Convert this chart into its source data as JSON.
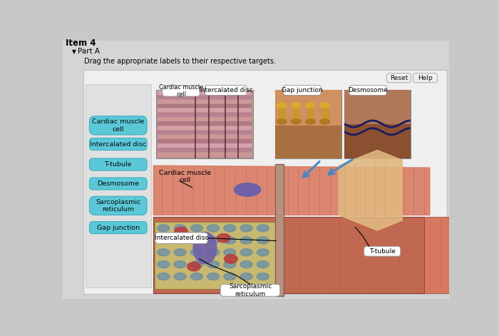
{
  "title": "Item 4",
  "part_label": "Part A",
  "instruction": "Drag the appropriate labels to their respective targets.",
  "bg_outer": "#c8c8c8",
  "bg_page": "#d5d5d5",
  "bg_panel": "#f0f0f0",
  "bg_sidebar": "#e2e2e2",
  "button_color": "#5bc8d8",
  "button_border": "#3ab0c0",
  "top_label_bg": "#ffffff",
  "top_label_border": "#999999",
  "reset_help_bg": "#f0f0f0",
  "left_buttons": [
    "Cardiac muscle\ncell",
    "Intercalated disc",
    "T-tubule",
    "Desmosome",
    "Sarcoplasmic\nreticulum",
    "Gap junction"
  ],
  "top_labels": [
    "Cardiac muscle\ncell",
    "Intercalated disc",
    "Gap junction",
    "Desmosome"
  ],
  "reset_btn": "Reset",
  "help_btn": "Help",
  "muscle_color1": "#d87860",
  "muscle_color2": "#c06850",
  "muscle_stripe": "#a85040",
  "cutaway_bg": "#c8b870",
  "sr_color": "#5888b0",
  "nucleus_color": "#7060a8",
  "red_blob": "#b83838",
  "disc_color": "#b89080",
  "fig_w": 7.0,
  "fig_h": 4.71,
  "dpi": 100
}
